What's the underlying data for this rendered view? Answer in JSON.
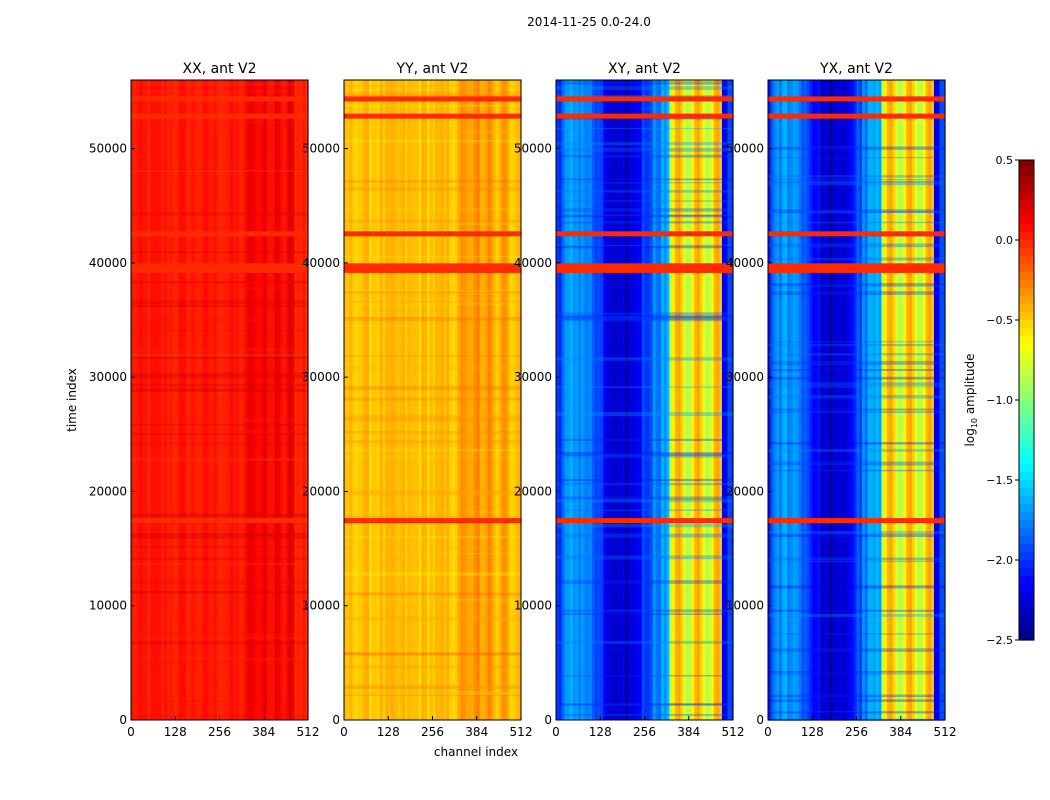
{
  "chart_data": {
    "type": "heatmap",
    "suptitle": "2014-11-25 0.0-24.0",
    "xlabel": "channel index",
    "ylabel": "time index",
    "colormap": "jet",
    "panels": [
      {
        "title": "XX, ant V2",
        "base_level": 0.05,
        "contrast": 0.45
      },
      {
        "title": "YY, ant V2",
        "base_level": -0.45,
        "contrast": 0.55
      },
      {
        "title": "XY, ant V2",
        "base_level": -2.0,
        "contrast": 1.0
      },
      {
        "title": "YX, ant V2",
        "base_level": -2.0,
        "contrast": 1.0
      }
    ],
    "x_range": [
      0,
      512
    ],
    "y_range": [
      0,
      56000
    ],
    "xticks": [
      0,
      128,
      256,
      384,
      512
    ],
    "xtick_labels": [
      "0",
      "128",
      "256",
      "384",
      "512"
    ],
    "yticks": [
      0,
      10000,
      20000,
      30000,
      40000,
      50000
    ],
    "ytick_labels": [
      "0",
      "10000",
      "20000",
      "30000",
      "40000",
      "50000"
    ],
    "active_band_channels": [
      325,
      480
    ],
    "flagged_rows_time_index": [
      17400,
      39300,
      39700,
      42500,
      52800,
      54300
    ],
    "flagged_value": 0.0,
    "colorbar": {
      "label": "log10 amplitude",
      "label_main": "log",
      "label_sub": "10",
      "label_tail": " amplitude",
      "range": [
        -2.5,
        0.5
      ],
      "ticks": [
        0.5,
        0.0,
        -0.5,
        -1.0,
        -1.5,
        -2.0,
        -2.5
      ],
      "tick_labels": [
        "0.5",
        "0.0",
        "−0.5",
        "−1.0",
        "−1.5",
        "−2.0",
        "−2.5"
      ]
    }
  }
}
